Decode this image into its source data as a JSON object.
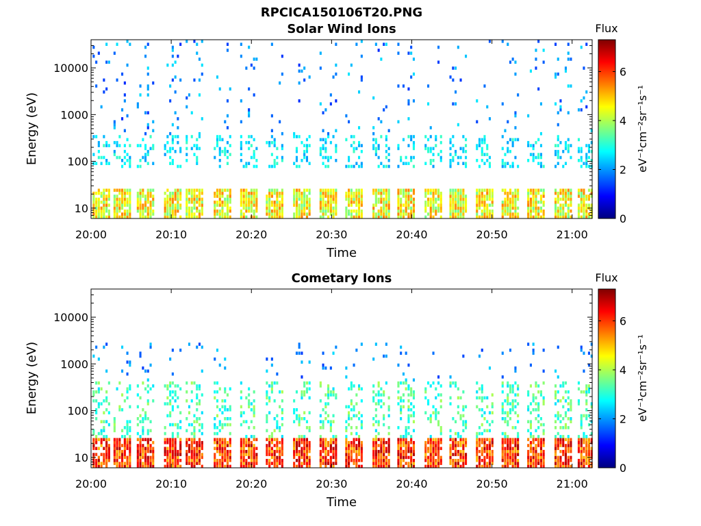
{
  "figure": {
    "title": "RPCICA150106T20.PNG"
  },
  "colorbar": {
    "label": "Flux",
    "unit_label": "eV⁻¹cm⁻²sr⁻¹s⁻¹",
    "min": 0,
    "max": 7.3,
    "ticks": [
      "0",
      "2",
      "4",
      "6"
    ],
    "colormap": "jet",
    "colors": [
      "#00007f",
      "#0000ff",
      "#007fff",
      "#00ffff",
      "#7fff7f",
      "#ffff00",
      "#ff7f00",
      "#ff0000",
      "#7f0000"
    ]
  },
  "chart_data": [
    {
      "type": "heatmap",
      "title": "Solar Wind Ions",
      "xlabel": "Time",
      "ylabel": "Energy (eV)",
      "yscale": "log",
      "ylim": [
        6,
        40000
      ],
      "xlim_minutes": [
        0,
        62.5
      ],
      "x_tick_labels": [
        "20:00",
        "20:10",
        "20:20",
        "20:30",
        "20:40",
        "20:50",
        "21:00"
      ],
      "y_tick_labels": [
        "10",
        "100",
        "1000",
        "10000"
      ],
      "scan_times_minutes": [
        0.2,
        2.8,
        5.7,
        9.1,
        11.8,
        15.3,
        18.6,
        21.8,
        25.2,
        28.5,
        31.7,
        35.1,
        38.2,
        41.6,
        44.7,
        48.0,
        51.2,
        54.4,
        57.8,
        60.7
      ],
      "bands": [
        {
          "e_min": 6,
          "e_max": 28,
          "flux_min": 3.5,
          "flux_max": 5.5,
          "description": "low energy band"
        },
        {
          "e_min": 70,
          "e_max": 350,
          "flux_min": 2.0,
          "flux_max": 3.2,
          "description": "scattered counts"
        },
        {
          "e_min": 350,
          "e_max": 40000,
          "flux_min": 1.2,
          "flux_max": 2.6,
          "description": "sparse high energy counts"
        }
      ]
    },
    {
      "type": "heatmap",
      "title": "Cometary Ions",
      "xlabel": "Time",
      "ylabel": "Energy (eV)",
      "yscale": "log",
      "ylim": [
        6,
        40000
      ],
      "xlim_minutes": [
        0,
        62.5
      ],
      "x_tick_labels": [
        "20:00",
        "20:10",
        "20:20",
        "20:30",
        "20:40",
        "20:50",
        "21:00"
      ],
      "y_tick_labels": [
        "10",
        "100",
        "1000",
        "10000"
      ],
      "scan_times_minutes": [
        0.2,
        2.8,
        5.7,
        9.1,
        11.8,
        15.3,
        18.6,
        21.8,
        25.2,
        28.5,
        31.7,
        35.1,
        38.2,
        41.6,
        44.7,
        48.0,
        51.2,
        54.4,
        57.8,
        60.7
      ],
      "bands": [
        {
          "e_min": 6,
          "e_max": 28,
          "flux_min": 5.0,
          "flux_max": 7.0,
          "description": "intense low energy band"
        },
        {
          "e_min": 28,
          "e_max": 450,
          "flux_min": 2.5,
          "flux_max": 4.0,
          "description": "broad cometary population"
        },
        {
          "e_min": 450,
          "e_max": 3000,
          "flux_min": 1.3,
          "flux_max": 2.5,
          "description": "sparse higher energy counts"
        }
      ]
    }
  ]
}
